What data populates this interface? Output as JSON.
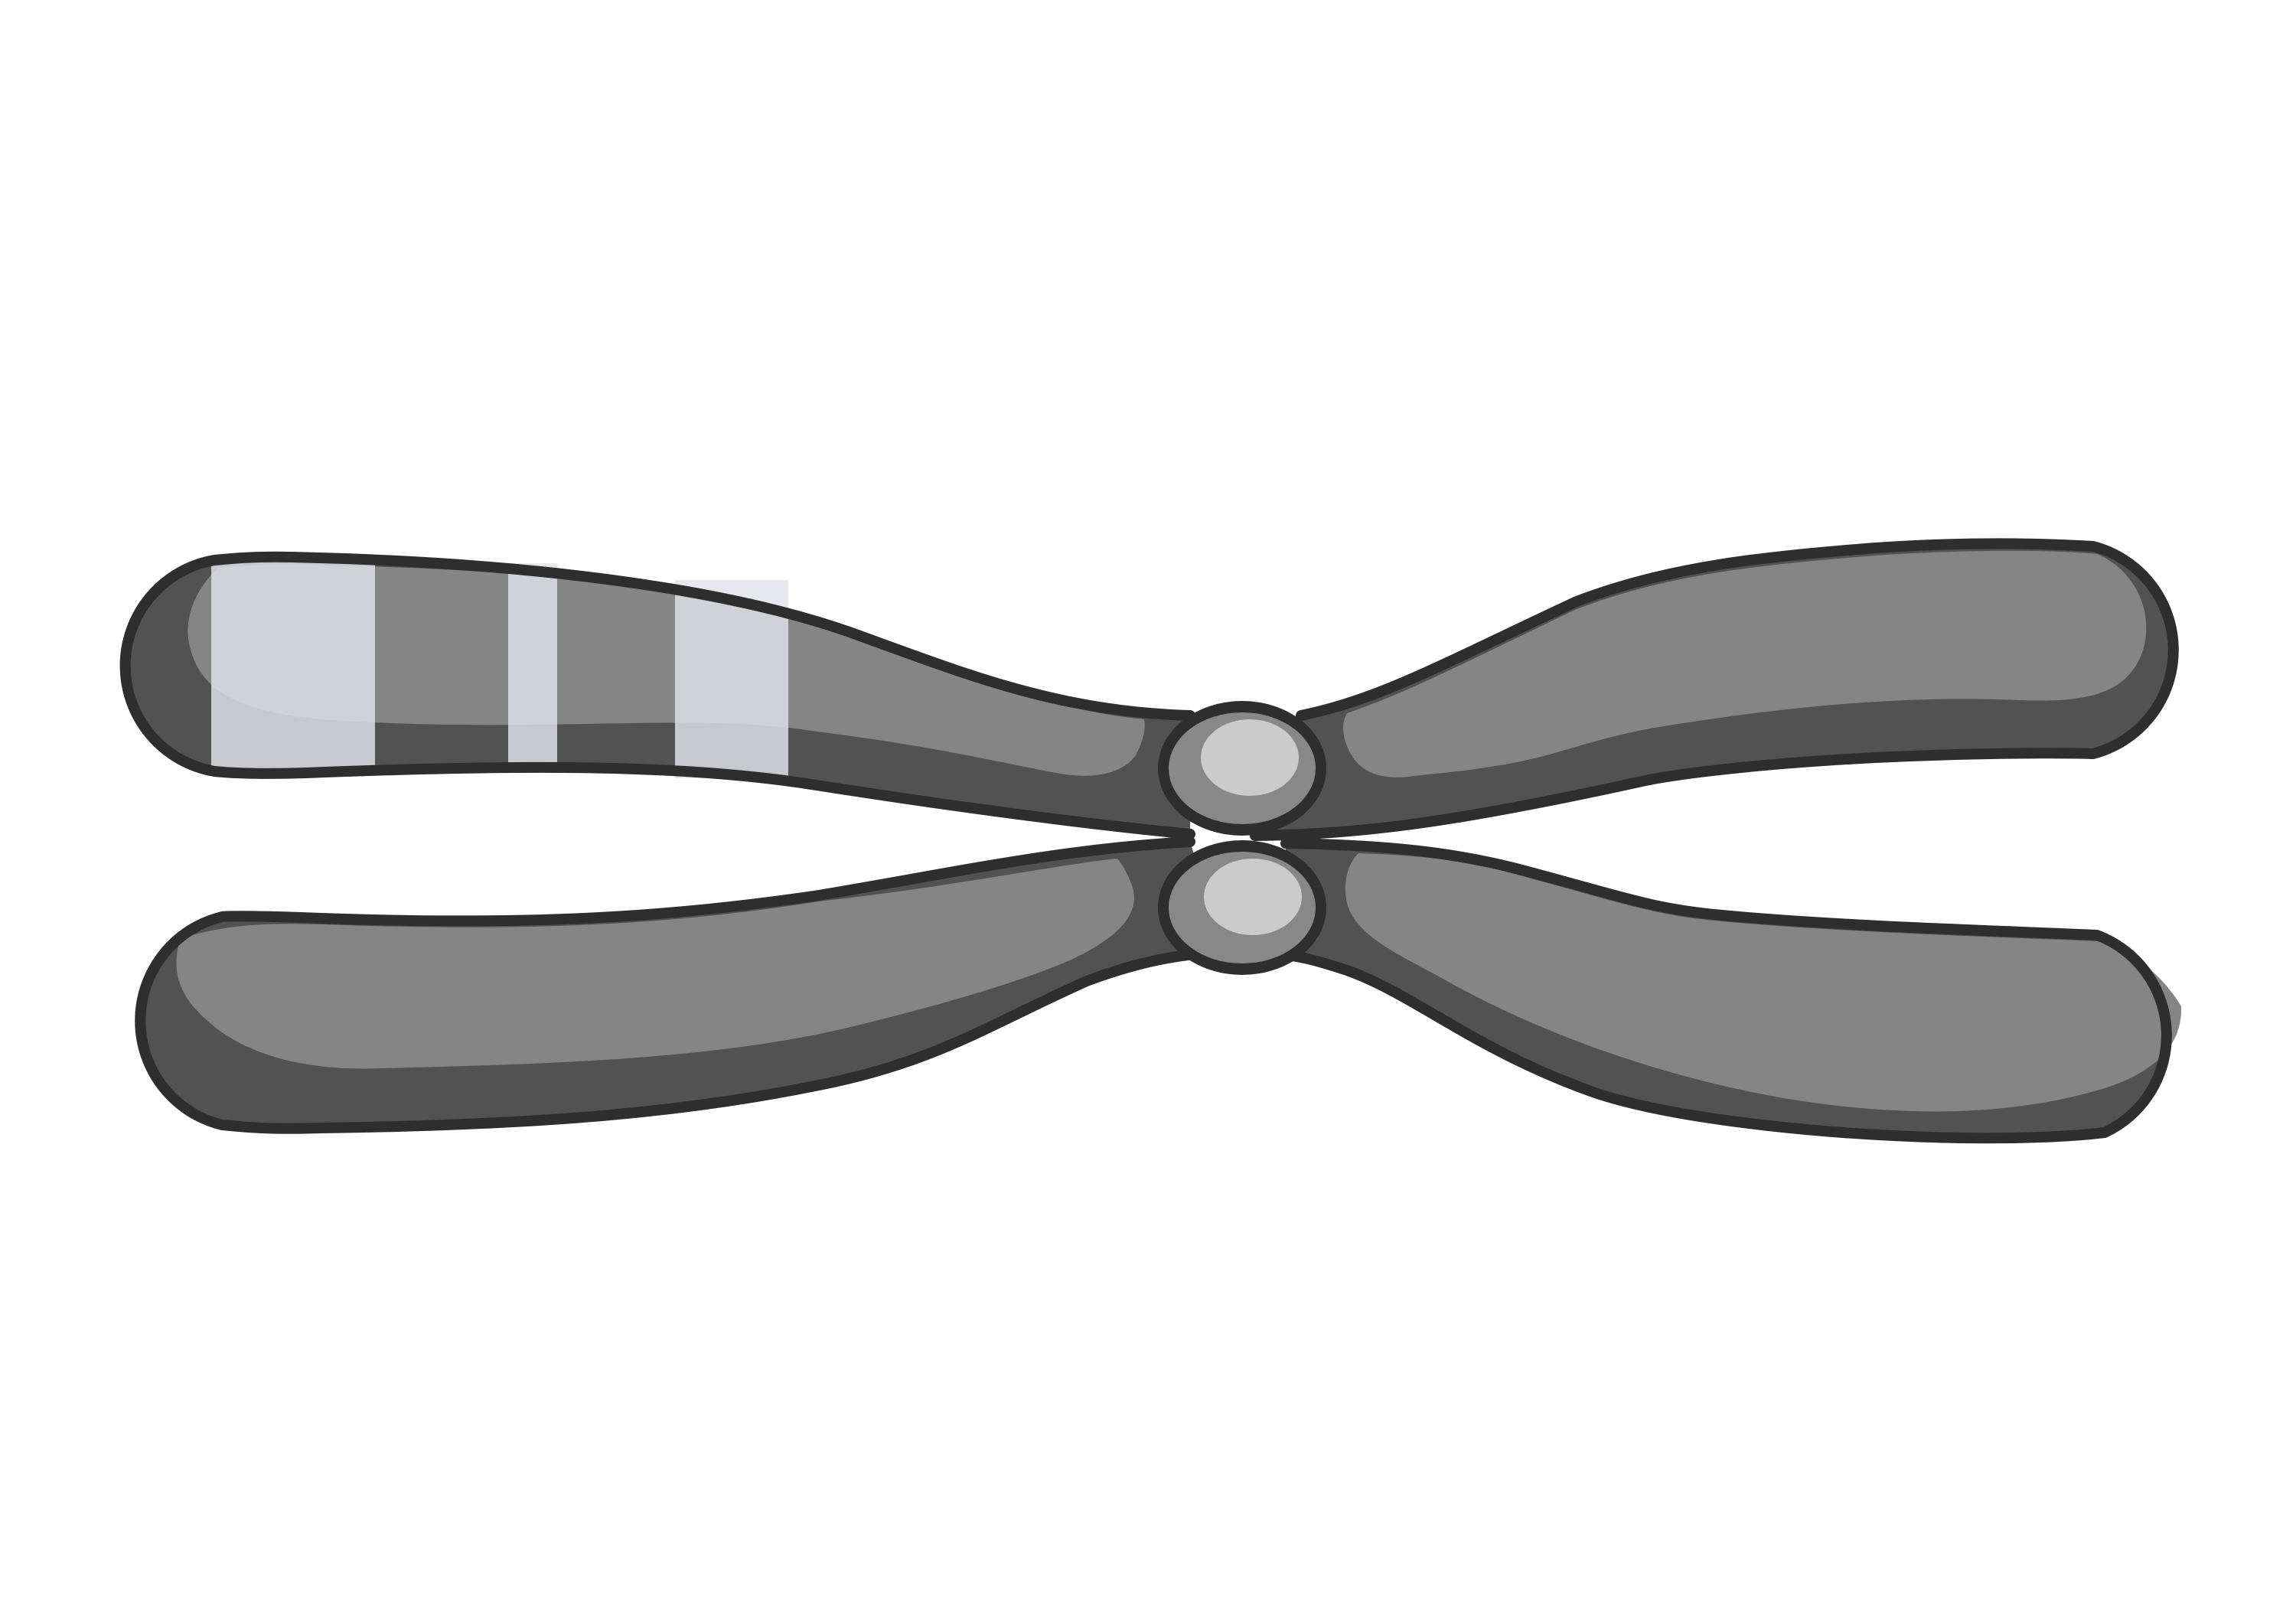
{
  "colors": {
    "background": "#ffffff",
    "outline": "#2e2e2e",
    "arm_dark": "#525252",
    "arm_light": "#858585",
    "centromere_fill": "#888888",
    "centromere_highlight": "#cbcbcb",
    "band": "#e2e2ea"
  },
  "figure": {
    "subject": "chromosome-icon",
    "chromatid_count": 2,
    "arm_count": 4,
    "band_count": 3
  }
}
